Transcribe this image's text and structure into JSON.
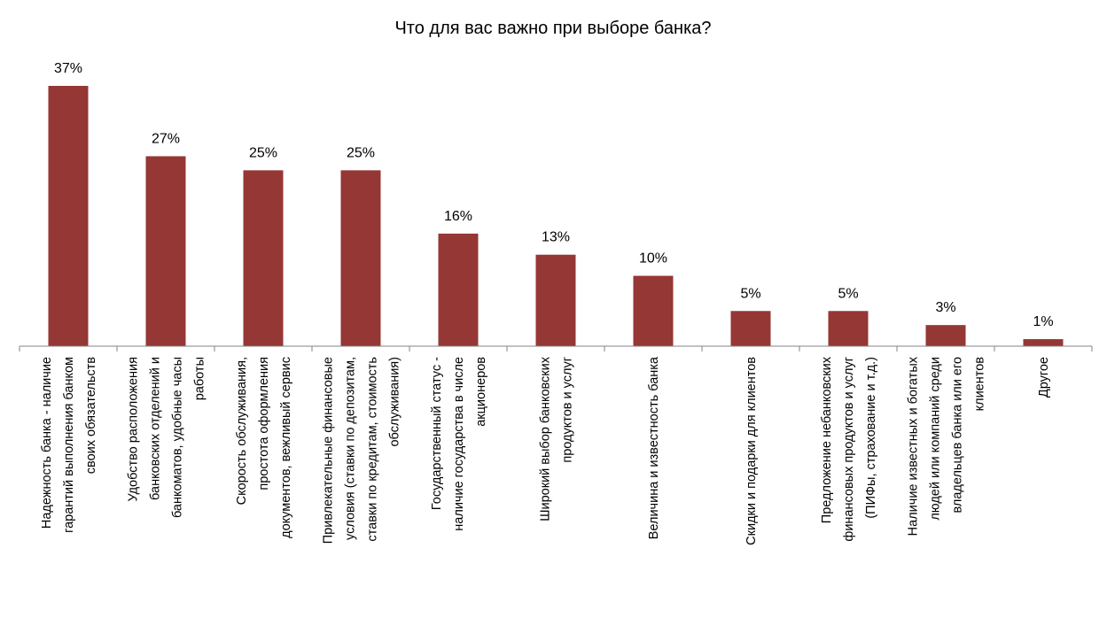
{
  "chart_data": {
    "type": "bar",
    "title": "Что для вас важно при выборе банка?",
    "categories": [
      [
        "Надежность банка - наличие",
        "гарантий выполнения банком",
        "своих обязательств"
      ],
      [
        "Удобство расположения",
        "банковских отделений и",
        "банкоматов, удобные часы",
        "работы"
      ],
      [
        "Скорость обслуживания,",
        "простота оформления",
        "документов, вежливый сервис"
      ],
      [
        "Привлекательные финансовые",
        "условия (ставки по депозитам,",
        "ставки по кредитам, стоимость",
        "обслуживания)"
      ],
      [
        "Государственный статус -",
        "наличие государства в числе",
        "акционеров"
      ],
      [
        "Широкий выбор банковских",
        "продуктов и услуг"
      ],
      [
        "Величина и известность банка"
      ],
      [
        "Скидки и подарки для клиентов"
      ],
      [
        "Предложение небанковских",
        "финансовых продуктов и услуг",
        "(ПИФы, страхование и т.д.)"
      ],
      [
        "Наличие известных и богатых",
        "людей или компаний среди",
        "владельцев банка или его",
        "клиентов"
      ],
      [
        "Другое"
      ]
    ],
    "values": [
      37,
      27,
      25,
      25,
      16,
      13,
      10,
      5,
      5,
      3,
      1
    ],
    "data_labels": [
      "37%",
      "27%",
      "25%",
      "25%",
      "16%",
      "13%",
      "10%",
      "5%",
      "5%",
      "3%",
      "1%"
    ],
    "bar_color": "#953735",
    "axis_color": "#868686",
    "xlabel": "",
    "ylabel": "",
    "ylim": [
      0,
      37
    ],
    "grid": false,
    "legend": "none"
  }
}
